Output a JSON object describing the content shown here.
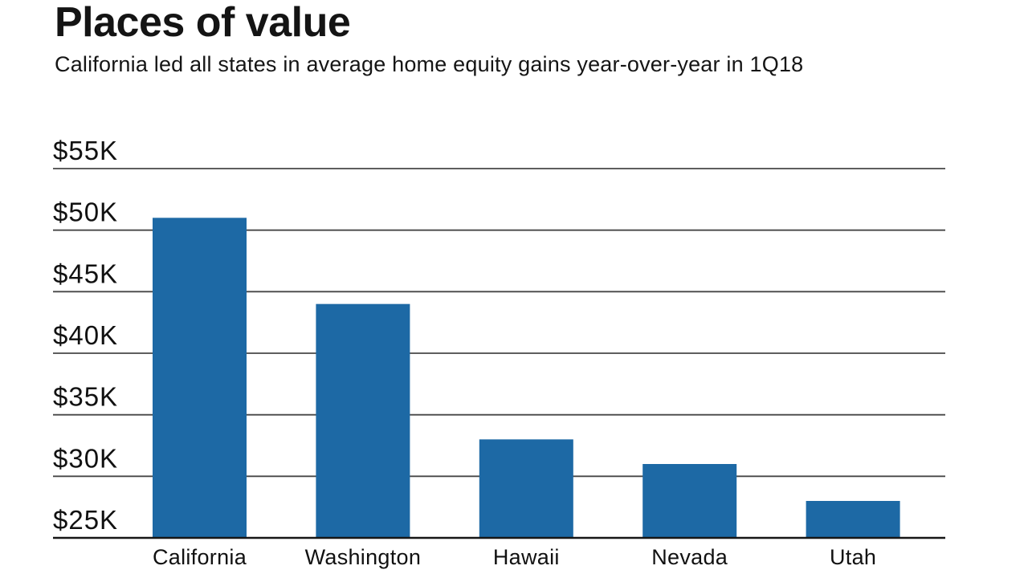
{
  "page": {
    "background_color": "#ffffff"
  },
  "header": {
    "title": "Places of value",
    "subtitle": "California led all states in average home equity gains year-over-year in 1Q18"
  },
  "chart_data": {
    "type": "bar",
    "title": "Places of value",
    "subtitle": "California led all states in average home equity gains year-over-year in 1Q18",
    "categories": [
      "California",
      "Washington",
      "Hawaii",
      "Nevada",
      "Utah"
    ],
    "values": [
      51000,
      44000,
      33000,
      31000,
      28000
    ],
    "value_unit": "USD",
    "ylim": [
      25000,
      55000
    ],
    "y_tick_step": 5000,
    "y_tick_labels": [
      "$55K",
      "$50K",
      "$45K",
      "$40K",
      "$35K",
      "$30K",
      "$25K"
    ],
    "grid": true,
    "legend": false,
    "bar_color": "#1d69a5",
    "grid_color": "#474747",
    "axis_color": "#161616",
    "text_color": "#111111"
  }
}
